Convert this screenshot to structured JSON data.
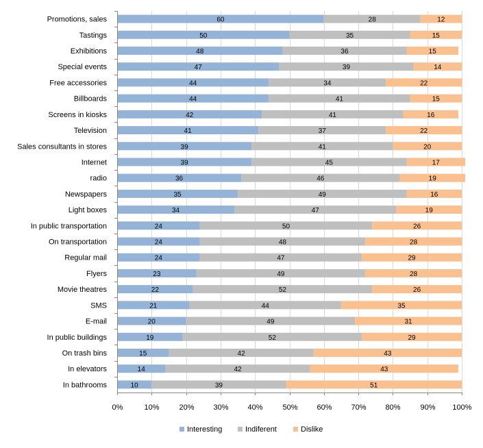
{
  "chart_data": {
    "type": "bar",
    "orientation": "horizontal",
    "stacked": "percent",
    "categories": [
      "Promotions, sales",
      "Tastings",
      "Exhibitions",
      "Special events",
      "Free accessories",
      "Billboards",
      "Screens in kiosks",
      "Television",
      "Sales consultants  in stores",
      "Internet",
      "radio",
      "Newspapers",
      "Light boxes",
      "In public transportation",
      "On transportation",
      "Regular mail",
      "Flyers",
      "Movie theatres",
      "SMS",
      "E-mail",
      "In public buildings",
      "On trash  bins",
      "In elevators",
      "In bathrooms"
    ],
    "series": [
      {
        "name": "Interesting",
        "color": "#95b3d7",
        "values": [
          60,
          50,
          48,
          47,
          44,
          44,
          42,
          41,
          39,
          39,
          36,
          35,
          34,
          24,
          24,
          24,
          23,
          22,
          21,
          20,
          19,
          15,
          14,
          10
        ]
      },
      {
        "name": "Indiferent",
        "color": "#bfbfbf",
        "values": [
          28,
          35,
          36,
          39,
          34,
          41,
          41,
          37,
          41,
          45,
          46,
          49,
          47,
          50,
          48,
          47,
          49,
          52,
          44,
          49,
          52,
          42,
          42,
          39
        ]
      },
      {
        "name": "Dislike",
        "color": "#fac090",
        "values": [
          12,
          15,
          15,
          14,
          22,
          15,
          16,
          22,
          20,
          17,
          19,
          16,
          19,
          26,
          28,
          29,
          28,
          26,
          35,
          31,
          29,
          43,
          43,
          51
        ]
      }
    ],
    "x_ticks": [
      "0%",
      "10%",
      "20%",
      "30%",
      "40%",
      "50%",
      "60%",
      "70%",
      "80%",
      "90%",
      "100%"
    ],
    "xlim": [
      0,
      100
    ],
    "grid": "vertical",
    "legend": "bottom",
    "title": "",
    "xlabel": "",
    "ylabel": ""
  }
}
